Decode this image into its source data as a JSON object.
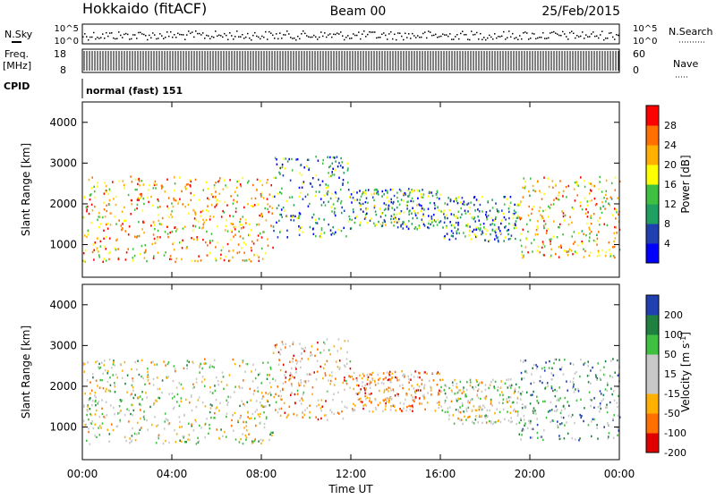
{
  "header": {
    "station": "Hokkaido (fitACF)",
    "beam": "Beam 00",
    "date": "25/Feb/2015"
  },
  "sky_panel": {
    "left_label": "N.Sky",
    "right_label": "N.Search",
    "left_ticks": [
      "10^5",
      "10^0"
    ],
    "right_ticks": [
      "10^5",
      "10^0"
    ]
  },
  "freq_panel": {
    "left_label": "Freq.",
    "left_unit": "[MHz]",
    "right_label": "Nave",
    "left_ticks": [
      "18",
      "8"
    ],
    "right_ticks": [
      "60",
      "0"
    ]
  },
  "cpid_panel": {
    "label": "CPID",
    "mode_text": "normal (fast) 151"
  },
  "colors": {
    "power_scale": [
      "#0000ff",
      "#2040b0",
      "#20a060",
      "#40c040",
      "#ffff00",
      "#ffb000",
      "#ff7000",
      "#ff0000"
    ],
    "velocity_scale": [
      "#e00000",
      "#ff7000",
      "#ffb000",
      "#c8c8c8",
      "#c8c8c8",
      "#40c040",
      "#208040",
      "#2040b0"
    ]
  },
  "chart_data": [
    {
      "type": "heatmap",
      "title": "",
      "xlabel": "",
      "ylabel": "Slant Range [km]",
      "xlim": [
        0,
        24
      ],
      "ylim": [
        200,
        4500
      ],
      "x_tick_values": [
        0,
        4,
        8,
        12,
        16,
        20,
        24
      ],
      "y_ticks": [
        "1000",
        "2000",
        "3000",
        "4000"
      ],
      "colorbar": {
        "label": "Power [dB]",
        "range": [
          0,
          32
        ],
        "ticks": [
          "4",
          "8",
          "12",
          "16",
          "20",
          "24",
          "28"
        ]
      },
      "scatter_bands": [
        {
          "t0": 0.0,
          "t1": 8.5,
          "r0": 600,
          "r1": 2700,
          "level": 0.7
        },
        {
          "t0": 8.5,
          "t1": 12.0,
          "r0": 1200,
          "r1": 3200,
          "level": 0.3
        },
        {
          "t0": 12.0,
          "t1": 16.0,
          "r0": 1400,
          "r1": 2400,
          "level": 0.35
        },
        {
          "t0": 16.0,
          "t1": 19.5,
          "r0": 1100,
          "r1": 2200,
          "level": 0.3
        },
        {
          "t0": 19.5,
          "t1": 24.0,
          "r0": 700,
          "r1": 2700,
          "level": 0.65
        }
      ]
    },
    {
      "type": "heatmap",
      "title": "",
      "xlabel": "Time UT",
      "ylabel": "Slant Range [km]",
      "xlim": [
        0,
        24
      ],
      "ylim": [
        200,
        4500
      ],
      "x_ticks": [
        "00:00",
        "04:00",
        "08:00",
        "12:00",
        "16:00",
        "20:00",
        "00:00"
      ],
      "x_tick_values": [
        0,
        4,
        8,
        12,
        16,
        20,
        24
      ],
      "y_ticks": [
        "1000",
        "2000",
        "3000",
        "4000"
      ],
      "colorbar": {
        "label": "Velocity [m s^-1]",
        "range": [
          -250,
          250
        ],
        "ticks": [
          "200",
          "100",
          "50",
          "15",
          "-15",
          "-50",
          "-100",
          "-200"
        ]
      },
      "scatter_bands": [
        {
          "t0": 0.0,
          "t1": 8.5,
          "r0": 600,
          "r1": 2700,
          "level": 0.5
        },
        {
          "t0": 8.5,
          "t1": 12.0,
          "r0": 1200,
          "r1": 3200,
          "level": 0.35
        },
        {
          "t0": 12.0,
          "t1": 16.0,
          "r0": 1400,
          "r1": 2400,
          "level": 0.3
        },
        {
          "t0": 16.0,
          "t1": 19.5,
          "r0": 1100,
          "r1": 2200,
          "level": 0.5
        },
        {
          "t0": 19.5,
          "t1": 24.0,
          "r0": 700,
          "r1": 2700,
          "level": 0.7
        }
      ]
    }
  ]
}
